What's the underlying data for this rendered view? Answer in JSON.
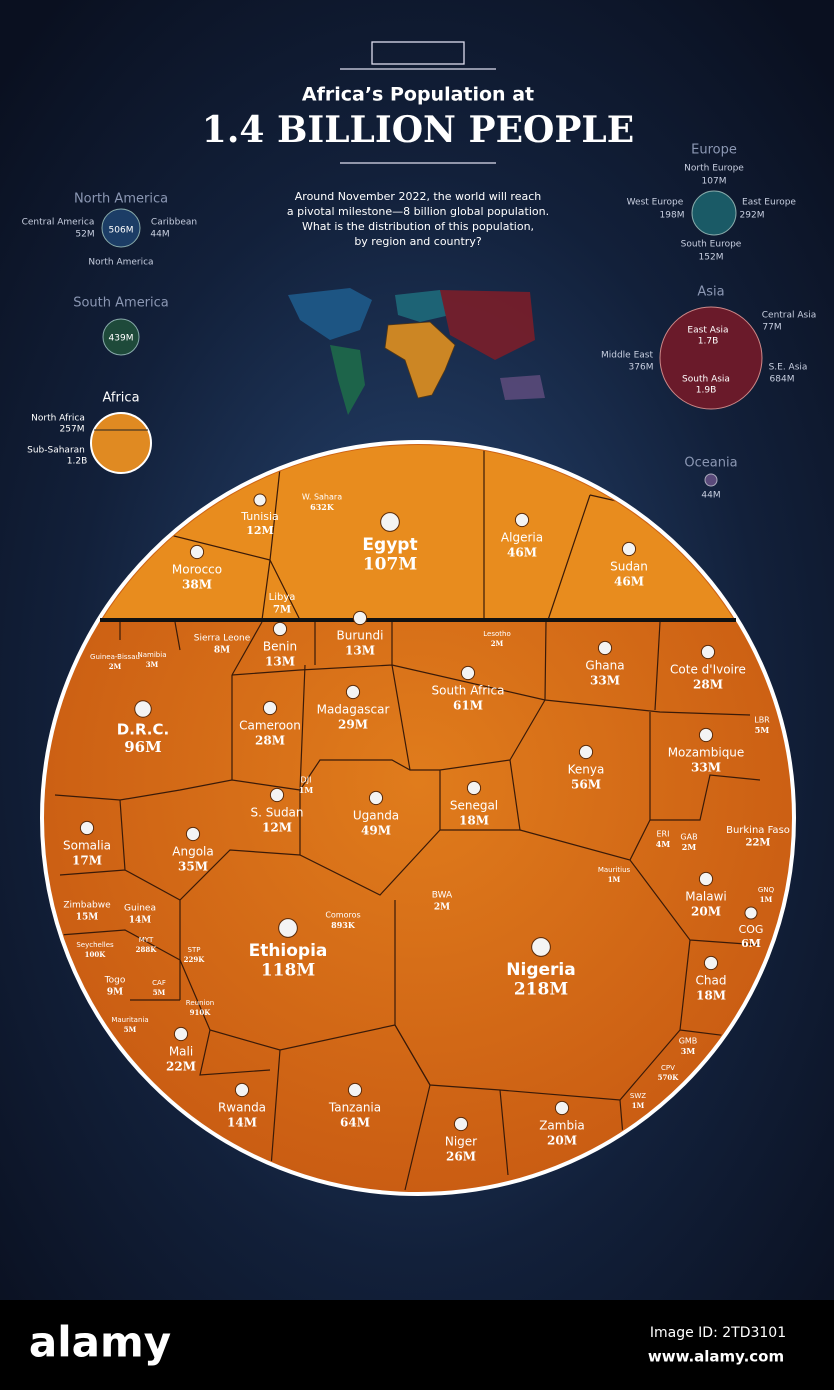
{
  "header": {
    "title_line1": "Africa’s Population at",
    "title_line2": "1.4 BILLION PEOPLE",
    "description": [
      "Around November 2022, the world will reach",
      "a pivotal milestone—8 billion global population.",
      "What is the distribution of this population,",
      "by region and country?"
    ]
  },
  "regions": {
    "north_america": {
      "title": "North America",
      "total": "506M",
      "parts": [
        {
          "name": "Central America",
          "value": "52M"
        },
        {
          "name": "Caribbean",
          "value": "44M"
        },
        {
          "name": "North America",
          "value": null
        }
      ]
    },
    "south_america": {
      "title": "South America",
      "total": "439M"
    },
    "africa": {
      "title": "Africa",
      "parts": [
        {
          "name": "North Africa",
          "value": "257M"
        },
        {
          "name": "Sub-Saharan",
          "value": "1.2B"
        }
      ]
    },
    "europe": {
      "title": "Europe",
      "parts": [
        {
          "name": "North Europe",
          "value": "107M"
        },
        {
          "name": "West Europe",
          "value": "198M"
        },
        {
          "name": "East Europe",
          "value": "292M"
        },
        {
          "name": "South  Europe",
          "value": "152M"
        }
      ]
    },
    "asia": {
      "title": "Asia",
      "parts": [
        {
          "name": "East Asia",
          "value": "1.7B"
        },
        {
          "name": "South Asia",
          "value": "1.9B"
        },
        {
          "name": "Central Asia",
          "value": "77M"
        },
        {
          "name": "Middle East",
          "value": "376M"
        },
        {
          "name": "S.E. Asia",
          "value": "684M"
        }
      ]
    },
    "oceania": {
      "title": "Oceania",
      "total": "44M"
    }
  },
  "countries": [
    {
      "name": "Morocco",
      "value": "38M"
    },
    {
      "name": "Tunisia",
      "value": "12M"
    },
    {
      "name": "W. Sahara",
      "value": "632K"
    },
    {
      "name": "Libya",
      "value": "7M"
    },
    {
      "name": "Egypt",
      "value": "107M"
    },
    {
      "name": "Algeria",
      "value": "46M"
    },
    {
      "name": "Sudan",
      "value": "46M"
    },
    {
      "name": "Guinea-Bissau",
      "value": "2M"
    },
    {
      "name": "Namibia",
      "value": "3M"
    },
    {
      "name": "Sierra Leone",
      "value": "8M"
    },
    {
      "name": "Benin",
      "value": "13M"
    },
    {
      "name": "Burundi",
      "value": "13M"
    },
    {
      "name": "Lesotho",
      "value": "2M"
    },
    {
      "name": "D.R.C.",
      "value": "96M"
    },
    {
      "name": "Cameroon",
      "value": "28M"
    },
    {
      "name": "Madagascar",
      "value": "29M"
    },
    {
      "name": "South Africa",
      "value": "61M"
    },
    {
      "name": "Ghana",
      "value": "33M"
    },
    {
      "name": "Cote d'Ivoire",
      "value": "28M"
    },
    {
      "name": "LBR",
      "value": "5M"
    },
    {
      "name": "Mozambique",
      "value": "33M"
    },
    {
      "name": "Kenya",
      "value": "56M"
    },
    {
      "name": "Senegal",
      "value": "18M"
    },
    {
      "name": "Uganda",
      "value": "49M"
    },
    {
      "name": "DJI",
      "value": "1M"
    },
    {
      "name": "S. Sudan",
      "value": "12M"
    },
    {
      "name": "Somalia",
      "value": "17M"
    },
    {
      "name": "Angola",
      "value": "35M"
    },
    {
      "name": "Burkina Faso",
      "value": "22M"
    },
    {
      "name": "ERI",
      "value": "4M"
    },
    {
      "name": "GAB",
      "value": "2M"
    },
    {
      "name": "Mauritius",
      "value": "1M"
    },
    {
      "name": "Malawi",
      "value": "20M"
    },
    {
      "name": "GNQ",
      "value": "1M"
    },
    {
      "name": "COG",
      "value": "6M"
    },
    {
      "name": "Zimbabwe",
      "value": "15M"
    },
    {
      "name": "Guinea",
      "value": "14M"
    },
    {
      "name": "Comoros",
      "value": "893K"
    },
    {
      "name": "BWA",
      "value": "2M"
    },
    {
      "name": "Ethiopia",
      "value": "118M"
    },
    {
      "name": "Nigeria",
      "value": "218M"
    },
    {
      "name": "Seychelles",
      "value": "100K"
    },
    {
      "name": "MYT",
      "value": "288K"
    },
    {
      "name": "STP",
      "value": "229K"
    },
    {
      "name": "Togo",
      "value": "9M"
    },
    {
      "name": "CAF",
      "value": "5M"
    },
    {
      "name": "Chad",
      "value": "18M"
    },
    {
      "name": "Reunion",
      "value": "910K"
    },
    {
      "name": "Mauritania",
      "value": "5M"
    },
    {
      "name": "Mali",
      "value": "22M"
    },
    {
      "name": "GMB",
      "value": "3M"
    },
    {
      "name": "CPV",
      "value": "570K"
    },
    {
      "name": "SWZ",
      "value": "1M"
    },
    {
      "name": "Rwanda",
      "value": "14M"
    },
    {
      "name": "Tanzania",
      "value": "64M"
    },
    {
      "name": "Zambia",
      "value": "20M"
    },
    {
      "name": "Niger",
      "value": "26M"
    }
  ],
  "footer": {
    "brand": "alamy",
    "image_id": "Image ID: 2TD3101",
    "url": "www.alamy.com"
  }
}
